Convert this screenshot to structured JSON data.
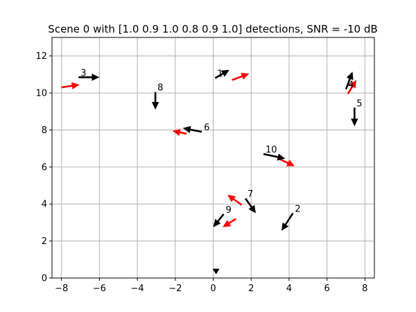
{
  "chart_data": {
    "type": "quiver",
    "title": "Scene 0 with [1.0 0.9 1.0 0.8 0.9 1.0] detections, SNR = -10 dB",
    "xlabel": "",
    "ylabel": "",
    "xlim": [
      -8.5,
      8.5
    ],
    "ylim": [
      0,
      13
    ],
    "xticks": [
      -8,
      -6,
      -4,
      -2,
      0,
      2,
      4,
      6,
      8
    ],
    "yticks": [
      0,
      2,
      4,
      6,
      8,
      10,
      12
    ],
    "grid": true,
    "colors": {
      "truth": "#000000",
      "estimate": "#ff0000",
      "grid": "#b0b0b0"
    },
    "truth_arrows": [
      {
        "label": "1",
        "x": 0.1,
        "y": 10.8,
        "dx": 0.75,
        "dy": 0.45
      },
      {
        "label": "2",
        "x": 4.2,
        "y": 3.5,
        "dx": -0.6,
        "dy": -0.95
      },
      {
        "label": "3",
        "x": -7.1,
        "y": 10.85,
        "dx": 1.1,
        "dy": 0.0
      },
      {
        "label": "4",
        "x": 7.0,
        "y": 10.2,
        "dx": 0.35,
        "dy": 0.95
      },
      {
        "label": "5",
        "x": 7.45,
        "y": 9.2,
        "dx": 0.0,
        "dy": -1.0
      },
      {
        "label": "6",
        "x": -0.6,
        "y": 7.9,
        "dx": -1.0,
        "dy": 0.2
      },
      {
        "label": "7",
        "x": 1.7,
        "y": 4.3,
        "dx": 0.55,
        "dy": -0.8
      },
      {
        "label": "8",
        "x": -3.05,
        "y": 10.05,
        "dx": 0.0,
        "dy": -0.95
      },
      {
        "label": "9",
        "x": 0.55,
        "y": 3.45,
        "dx": -0.55,
        "dy": -0.7
      },
      {
        "label": "10",
        "x": 2.65,
        "y": 6.7,
        "dx": 1.15,
        "dy": -0.25
      },
      {
        "label": "",
        "x": 0.15,
        "y": 0.2,
        "dx": 0.0,
        "dy": 0.0
      }
    ],
    "estimate_arrows": [
      {
        "x": 1.0,
        "y": 10.7,
        "dx": 0.9,
        "dy": 0.35
      },
      {
        "x": -8.0,
        "y": 10.3,
        "dx": 0.95,
        "dy": 0.15
      },
      {
        "x": 7.1,
        "y": 9.95,
        "dx": 0.45,
        "dy": 0.75
      },
      {
        "x": -1.4,
        "y": 7.8,
        "dx": -0.75,
        "dy": 0.15
      },
      {
        "x": 3.55,
        "y": 6.4,
        "dx": 0.75,
        "dy": -0.35
      },
      {
        "x": 1.5,
        "y": 3.95,
        "dx": -0.75,
        "dy": 0.55
      },
      {
        "x": 1.2,
        "y": 3.2,
        "dx": -0.7,
        "dy": -0.45
      }
    ]
  }
}
